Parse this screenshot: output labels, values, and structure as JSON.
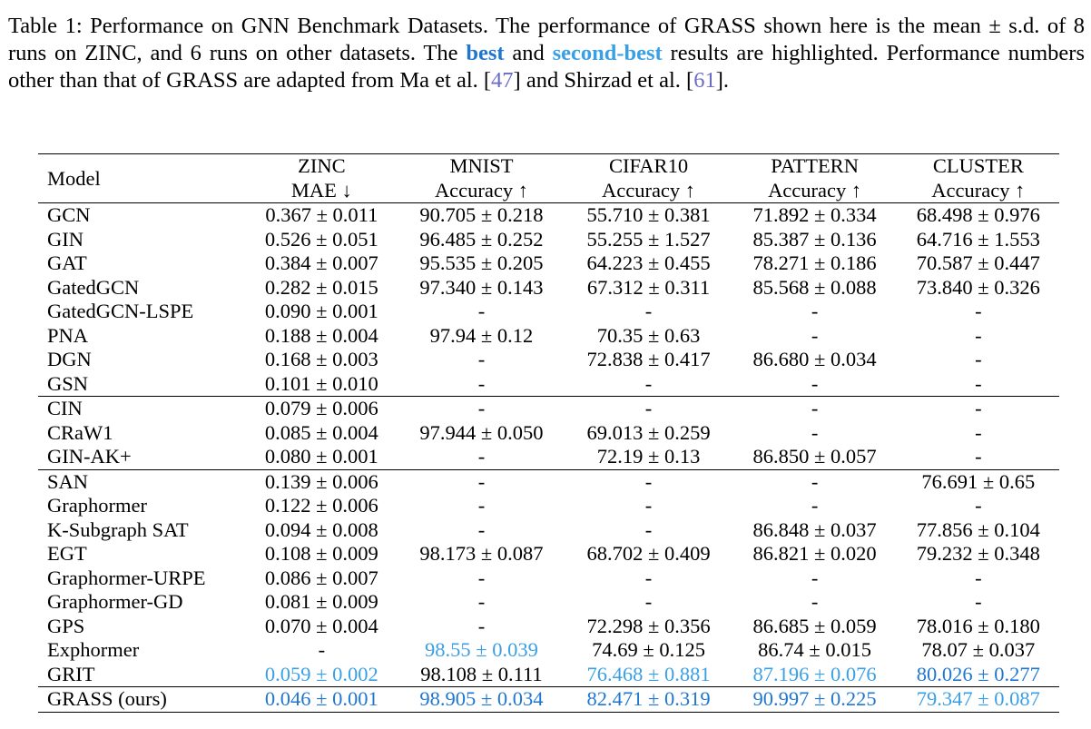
{
  "caption": {
    "part1": "Table 1: Performance on GNN Benchmark Datasets. The performance of GRASS shown here is the mean ± s.d. of 8 runs on ZINC, and 6 runs on other datasets. The ",
    "best": "best",
    "and": " and ",
    "second_best": "second-best",
    "part2": " results are highlighted. Performance numbers other than that of GRASS are adapted from Ma et al. [",
    "ref1": "47",
    "part3": "] and Shirzad et al. [",
    "ref2": "61",
    "part4": "]."
  },
  "colors": {
    "best": "#1f77d0",
    "second_best": "#3aa0e6",
    "reference": "#6b6bc7"
  },
  "table": {
    "model_header": "Model",
    "datasets": [
      {
        "name": "ZINC",
        "metric": "MAE ↓"
      },
      {
        "name": "MNIST",
        "metric": "Accuracy ↑"
      },
      {
        "name": "CIFAR10",
        "metric": "Accuracy ↑"
      },
      {
        "name": "PATTERN",
        "metric": "Accuracy ↑"
      },
      {
        "name": "CLUSTER",
        "metric": "Accuracy ↑"
      }
    ],
    "groups": [
      [
        {
          "model": "GCN",
          "values": [
            "0.367 ± 0.011",
            "90.705 ± 0.218",
            "55.710 ± 0.381",
            "71.892 ± 0.334",
            "68.498 ± 0.976"
          ]
        },
        {
          "model": "GIN",
          "values": [
            "0.526 ± 0.051",
            "96.485 ± 0.252",
            "55.255 ± 1.527",
            "85.387 ± 0.136",
            "64.716 ± 1.553"
          ]
        },
        {
          "model": "GAT",
          "values": [
            "0.384 ± 0.007",
            "95.535 ± 0.205",
            "64.223 ± 0.455",
            "78.271 ± 0.186",
            "70.587 ± 0.447"
          ]
        },
        {
          "model": "GatedGCN",
          "values": [
            "0.282 ± 0.015",
            "97.340 ± 0.143",
            "67.312 ± 0.311",
            "85.568 ± 0.088",
            "73.840 ± 0.326"
          ]
        },
        {
          "model": "GatedGCN-LSPE",
          "values": [
            "0.090 ± 0.001",
            "-",
            "-",
            "-",
            "-"
          ]
        },
        {
          "model": "PNA",
          "values": [
            "0.188 ± 0.004",
            "97.94 ± 0.12",
            "70.35 ± 0.63",
            "-",
            "-"
          ]
        },
        {
          "model": "DGN",
          "values": [
            "0.168 ± 0.003",
            "-",
            "72.838 ± 0.417",
            "86.680 ± 0.034",
            "-"
          ]
        },
        {
          "model": "GSN",
          "values": [
            "0.101 ± 0.010",
            "-",
            "-",
            "-",
            "-"
          ]
        }
      ],
      [
        {
          "model": "CIN",
          "values": [
            "0.079 ± 0.006",
            "-",
            "-",
            "-",
            "-"
          ]
        },
        {
          "model": "CRaW1",
          "values": [
            "0.085 ± 0.004",
            "97.944 ± 0.050",
            "69.013 ± 0.259",
            "-",
            "-"
          ]
        },
        {
          "model": "GIN-AK+",
          "values": [
            "0.080 ± 0.001",
            "-",
            "72.19 ± 0.13",
            "86.850 ± 0.057",
            "-"
          ]
        }
      ],
      [
        {
          "model": "SAN",
          "values": [
            "0.139 ± 0.006",
            "-",
            "-",
            "-",
            "76.691 ± 0.65"
          ]
        },
        {
          "model": "Graphormer",
          "values": [
            "0.122 ± 0.006",
            "-",
            "-",
            "-",
            "-"
          ]
        },
        {
          "model": "K-Subgraph SAT",
          "values": [
            "0.094 ± 0.008",
            "-",
            "-",
            "86.848 ± 0.037",
            "77.856 ± 0.104"
          ]
        },
        {
          "model": "EGT",
          "values": [
            "0.108 ± 0.009",
            "98.173 ± 0.087",
            "68.702 ± 0.409",
            "86.821 ± 0.020",
            "79.232 ± 0.348"
          ]
        },
        {
          "model": "Graphormer-URPE",
          "values": [
            "0.086 ± 0.007",
            "-",
            "-",
            "-",
            "-"
          ]
        },
        {
          "model": "Graphormer-GD",
          "values": [
            "0.081 ± 0.009",
            "-",
            "-",
            "-",
            "-"
          ]
        },
        {
          "model": "GPS",
          "values": [
            "0.070 ± 0.004",
            "-",
            "72.298 ± 0.356",
            "86.685 ± 0.059",
            "78.016 ± 0.180"
          ]
        },
        {
          "model": "Exphormer",
          "values": [
            "-",
            "98.55 ± 0.039",
            "74.69 ± 0.125",
            "86.74 ± 0.015",
            "78.07 ± 0.037"
          ],
          "highlight": [
            "",
            "second",
            "",
            "",
            ""
          ]
        },
        {
          "model": "GRIT",
          "values": [
            "0.059 ± 0.002",
            "98.108 ± 0.111",
            "76.468 ± 0.881",
            "87.196 ± 0.076",
            "80.026 ± 0.277"
          ],
          "highlight": [
            "second",
            "",
            "second",
            "second",
            "best"
          ]
        }
      ],
      [
        {
          "model": "GRASS (ours)",
          "values": [
            "0.046 ± 0.001",
            "98.905 ± 0.034",
            "82.471 ± 0.319",
            "90.997 ± 0.225",
            "79.347 ± 0.087"
          ],
          "highlight": [
            "best",
            "best",
            "best",
            "best",
            "second"
          ]
        }
      ]
    ]
  }
}
